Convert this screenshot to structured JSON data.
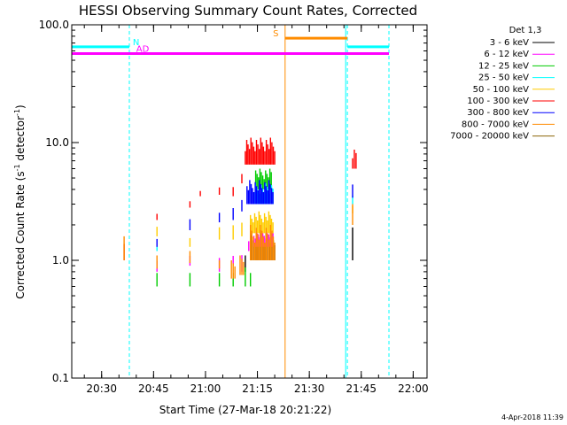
{
  "chart_data": {
    "type": "line",
    "title": "HESSI Observing Summary Count Rates, Corrected",
    "xlabel": "Start Time (27-Mar-18 20:21:22)",
    "ylabel_main": "Corrected Count Rate (s",
    "ylabel_sup1": "-1",
    "ylabel_mid": " detector",
    "ylabel_sup2": "-1",
    "ylabel_end": ")",
    "y_scale": "log",
    "ylim": [
      0.1,
      100.0
    ],
    "xlim": [
      "20:21:22",
      "22:04"
    ],
    "x_ticks": [
      {
        "t": "20:30",
        "label": "20:30"
      },
      {
        "t": "20:45",
        "label": "20:45"
      },
      {
        "t": "21:00",
        "label": "21:00"
      },
      {
        "t": "21:15",
        "label": "21:15"
      },
      {
        "t": "21:30",
        "label": "21:30"
      },
      {
        "t": "21:45",
        "label": "21:45"
      },
      {
        "t": "22:00",
        "label": "22:00"
      }
    ],
    "y_ticks": [
      {
        "v": 0.1,
        "label": "0.1"
      },
      {
        "v": 1.0,
        "label": "1.0"
      },
      {
        "v": 10.0,
        "label": "10.0"
      },
      {
        "v": 100.0,
        "label": "100.0"
      }
    ],
    "legend_title": "Det 1,3",
    "legend_placement": "right",
    "series": [
      {
        "name": "3 - 6 keV",
        "color": "#000000",
        "segments": [
          {
            "t0": "21:11:30",
            "t1": "21:12:00",
            "y": [
              0.8,
              1.1
            ]
          },
          {
            "t0": "21:13:00",
            "t1": "21:20:00",
            "y": [
              1.0,
              1.8
            ]
          },
          {
            "t0": "21:42:30",
            "t1": "21:43:00",
            "y": [
              1.0,
              1.9
            ]
          }
        ]
      },
      {
        "name": "6 - 12 keV",
        "color": "#ff00ff",
        "segments": [
          {
            "t0": "20:46:00",
            "t1": "20:46:30",
            "y": [
              0.8,
              1.1
            ]
          },
          {
            "t0": "20:55:30",
            "t1": "20:56:00",
            "y": [
              0.9,
              1.2
            ]
          },
          {
            "t0": "21:04:00",
            "t1": "21:04:30",
            "y": [
              0.8,
              1.2
            ]
          },
          {
            "t0": "21:08:00",
            "t1": "21:08:30",
            "y": [
              0.9,
              1.2
            ]
          },
          {
            "t0": "21:10:30",
            "t1": "21:11:00",
            "y": [
              0.8,
              1.3
            ]
          },
          {
            "t0": "21:12:30",
            "t1": "21:13:00",
            "y": [
              1.2,
              1.6
            ]
          },
          {
            "t0": "21:14:00",
            "t1": "21:19:30",
            "y": [
              1.3,
              1.8
            ]
          }
        ]
      },
      {
        "name": "12 - 25 keV",
        "color": "#00cc00",
        "segments": [
          {
            "t0": "20:46:00",
            "t1": "20:46:30",
            "y": [
              0.6,
              0.8
            ]
          },
          {
            "t0": "20:55:30",
            "t1": "20:56:00",
            "y": [
              0.6,
              0.8
            ]
          },
          {
            "t0": "21:04:00",
            "t1": "21:04:30",
            "y": [
              0.6,
              0.8
            ]
          },
          {
            "t0": "21:08:00",
            "t1": "21:08:30",
            "y": [
              0.6,
              0.8
            ]
          },
          {
            "t0": "21:11:30",
            "t1": "21:12:00",
            "y": [
              0.6,
              0.9
            ]
          },
          {
            "t0": "21:13:00",
            "t1": "21:13:30",
            "y": [
              0.6,
              0.8
            ]
          },
          {
            "t0": "21:14:30",
            "t1": "21:19:00",
            "y": [
              4.0,
              6.0
            ]
          }
        ]
      },
      {
        "name": "25 - 50 keV",
        "color": "#00ffff",
        "segments": [
          {
            "t0": "20:46:00",
            "t1": "20:46:30",
            "y": [
              1.2,
              1.4
            ]
          },
          {
            "t0": "21:14:00",
            "t1": "21:19:30",
            "y": [
              3.0,
              4.5
            ]
          },
          {
            "t0": "21:42:30",
            "t1": "21:43:00",
            "y": [
              3.0,
              4.0
            ]
          }
        ]
      },
      {
        "name": "50 - 100 keV",
        "color": "#ffcc00",
        "segments": [
          {
            "t0": "20:46:00",
            "t1": "20:46:30",
            "y": [
              1.6,
              2.0
            ]
          },
          {
            "t0": "20:55:30",
            "t1": "20:56:00",
            "y": [
              1.3,
              1.6
            ]
          },
          {
            "t0": "21:04:00",
            "t1": "21:04:30",
            "y": [
              1.5,
              2.0
            ]
          },
          {
            "t0": "21:08:00",
            "t1": "21:08:30",
            "y": [
              1.5,
              2.1
            ]
          },
          {
            "t0": "21:10:30",
            "t1": "21:11:00",
            "y": [
              1.6,
              2.2
            ]
          },
          {
            "t0": "21:13:00",
            "t1": "21:19:30",
            "y": [
              1.7,
              2.6
            ]
          },
          {
            "t0": "21:42:30",
            "t1": "21:43:00",
            "y": [
              2.5,
              3.0
            ]
          }
        ]
      },
      {
        "name": "100 - 300 keV",
        "color": "#ff0000",
        "segments": [
          {
            "t0": "20:36:30",
            "t1": "20:37:00",
            "y": [
              1.0,
              1.9
            ]
          },
          {
            "t0": "20:46:00",
            "t1": "20:46:30",
            "y": [
              2.2,
              2.8
            ]
          },
          {
            "t0": "20:55:30",
            "t1": "20:56:00",
            "y": [
              2.8,
              3.6
            ]
          },
          {
            "t0": "20:58:30",
            "t1": "20:59:00",
            "y": [
              3.5,
              4.3
            ]
          },
          {
            "t0": "21:04:00",
            "t1": "21:04:30",
            "y": [
              3.6,
              4.8
            ]
          },
          {
            "t0": "21:08:00",
            "t1": "21:08:30",
            "y": [
              3.5,
              5.0
            ]
          },
          {
            "t0": "21:10:30",
            "t1": "21:11:00",
            "y": [
              4.5,
              6.5
            ]
          },
          {
            "t0": "21:11:30",
            "t1": "21:20:00",
            "y": [
              6.5,
              11.0
            ]
          },
          {
            "t0": "21:42:30",
            "t1": "21:43:30",
            "y": [
              6.0,
              9.0
            ]
          }
        ]
      },
      {
        "name": "300 - 800 keV",
        "color": "#0000ff",
        "segments": [
          {
            "t0": "20:46:00",
            "t1": "20:46:30",
            "y": [
              1.3,
              1.6
            ]
          },
          {
            "t0": "20:55:30",
            "t1": "20:56:00",
            "y": [
              1.8,
              2.4
            ]
          },
          {
            "t0": "21:04:00",
            "t1": "21:04:30",
            "y": [
              2.1,
              2.7
            ]
          },
          {
            "t0": "21:08:00",
            "t1": "21:08:30",
            "y": [
              2.2,
              3.0
            ]
          },
          {
            "t0": "21:10:30",
            "t1": "21:11:00",
            "y": [
              2.6,
              3.5
            ]
          },
          {
            "t0": "21:12:00",
            "t1": "21:19:30",
            "y": [
              3.0,
              4.8
            ]
          },
          {
            "t0": "21:42:30",
            "t1": "21:43:00",
            "y": [
              3.4,
              4.8
            ]
          }
        ]
      },
      {
        "name": "800 - 7000 keV",
        "color": "#ff8c00",
        "segments": [
          {
            "t0": "20:36:30",
            "t1": "20:37:00",
            "y": [
              1.0,
              1.6
            ]
          },
          {
            "t0": "20:46:00",
            "t1": "20:46:30",
            "y": [
              0.85,
              1.1
            ]
          },
          {
            "t0": "20:55:30",
            "t1": "20:56:00",
            "y": [
              0.95,
              1.2
            ]
          },
          {
            "t0": "21:04:00",
            "t1": "21:04:30",
            "y": [
              0.85,
              1.0
            ]
          },
          {
            "t0": "21:07:30",
            "t1": "21:08:30",
            "y": [
              0.7,
              1.0
            ]
          },
          {
            "t0": "21:10:00",
            "t1": "21:11:00",
            "y": [
              0.75,
              1.1
            ]
          },
          {
            "t0": "21:13:00",
            "t1": "21:20:00",
            "y": [
              1.0,
              2.0
            ]
          },
          {
            "t0": "21:42:30",
            "t1": "21:43:00",
            "y": [
              2.0,
              3.0
            ]
          }
        ]
      },
      {
        "name": "7000 - 20000 keV",
        "color": "#8b6508",
        "segments": []
      }
    ],
    "mode_lines": [
      {
        "label": "N",
        "color": "#00ffff",
        "y": 65.0,
        "t0": "20:21:22",
        "t1": "20:38:00",
        "label_at": "20:39:00"
      },
      {
        "label": "",
        "color": "#00ffff",
        "y": 65.0,
        "t0": "21:41:00",
        "t1": "21:53:00",
        "label_at": ""
      },
      {
        "label": "AD",
        "color": "#ff00ff",
        "y": 57.0,
        "t0": "20:21:22",
        "t1": "21:53:00",
        "label_at": "20:40:00"
      },
      {
        "label": "S",
        "color": "#ff8c00",
        "y": 77.0,
        "t0": "21:23:00",
        "t1": "21:41:00",
        "label_at": "21:19:30"
      }
    ],
    "vertical_lines": [
      {
        "t": "20:21:22",
        "color": "#00ffff",
        "style": "solid"
      },
      {
        "t": "20:38:00",
        "color": "#00ffff",
        "style": "dashed"
      },
      {
        "t": "21:23:00",
        "color": "#ff8c00",
        "style": "solid"
      },
      {
        "t": "21:40:30",
        "color": "#00ffff",
        "style": "solid"
      },
      {
        "t": "21:41:00",
        "color": "#00ffff",
        "style": "dashed"
      },
      {
        "t": "21:53:00",
        "color": "#00ffff",
        "style": "dashed"
      }
    ],
    "footer": "4-Apr-2018 11:39"
  }
}
